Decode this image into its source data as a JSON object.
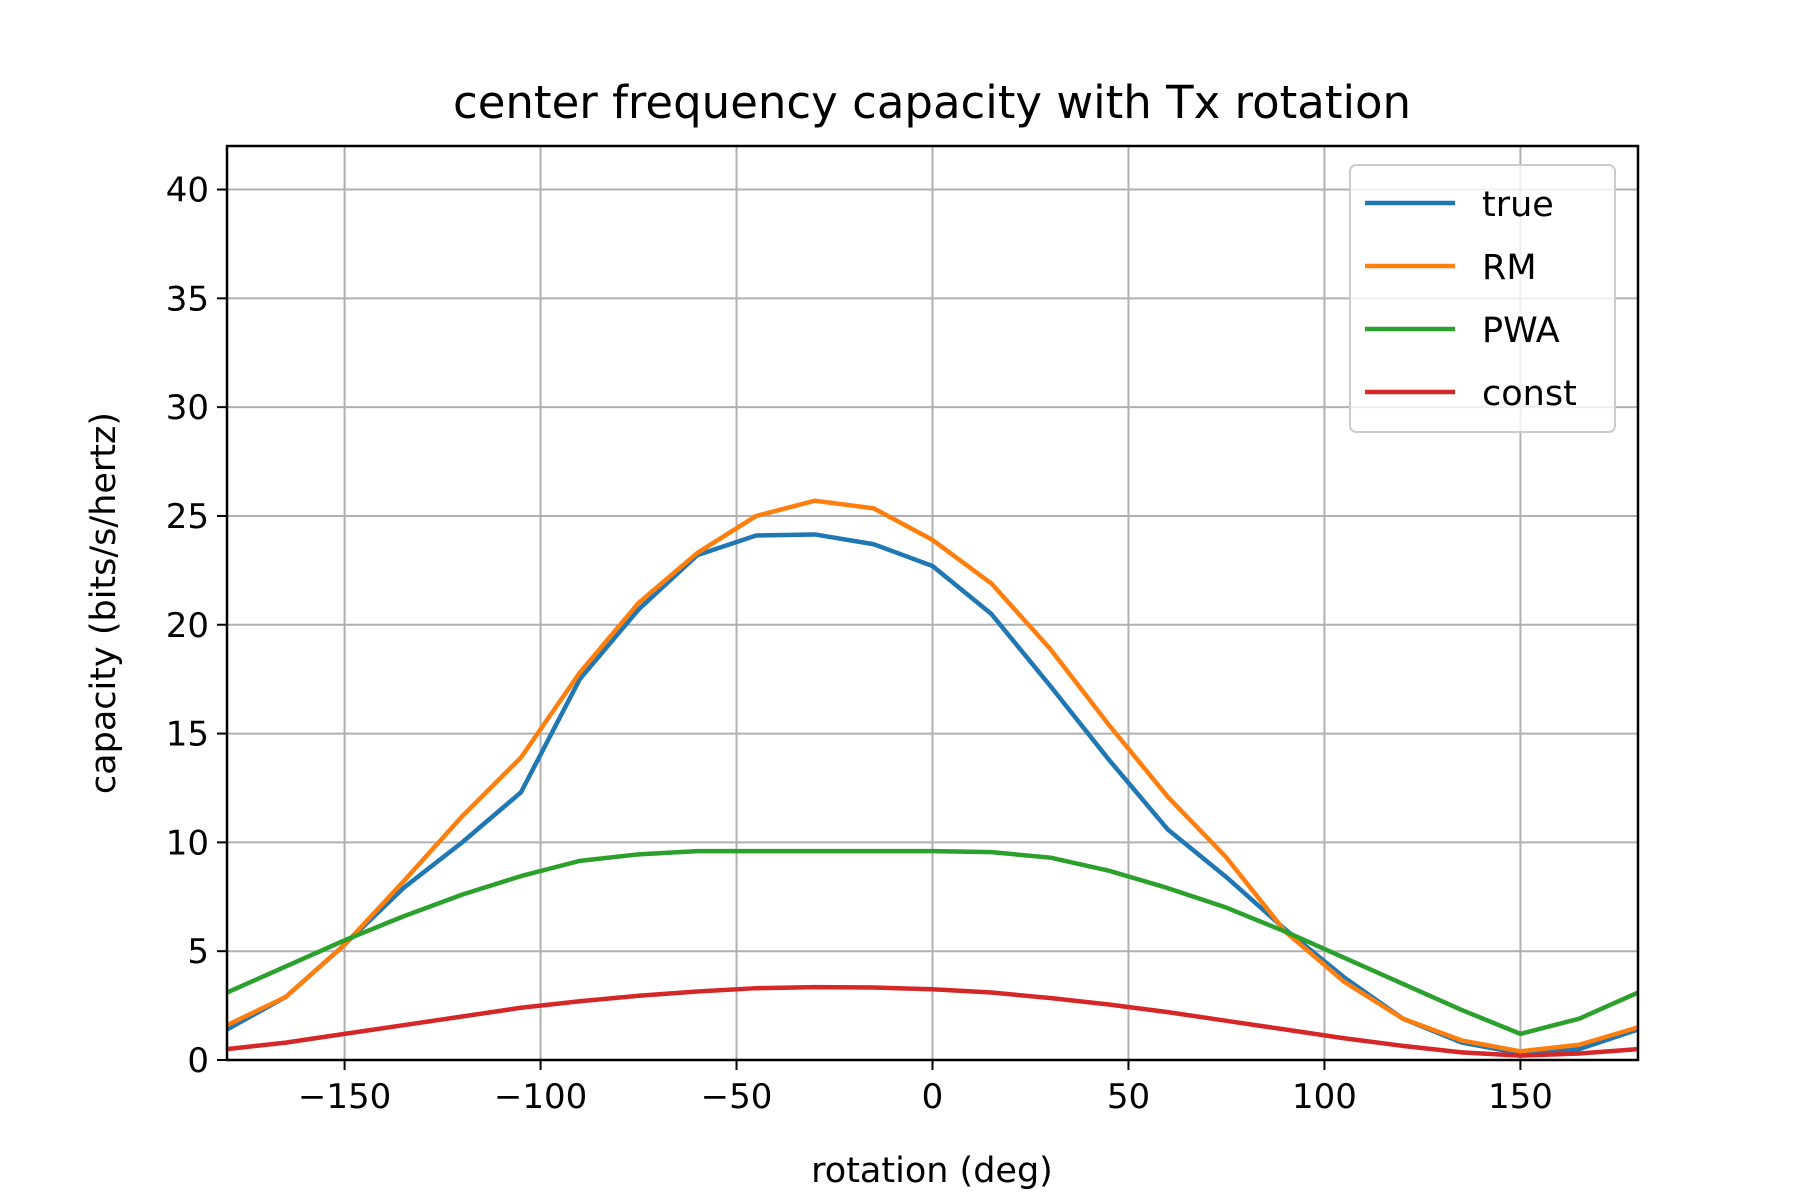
{
  "chart_data": {
    "type": "line",
    "title": "center frequency capacity with Tx rotation",
    "xlabel": "rotation (deg)",
    "ylabel": "capacity (bits/s/hertz)",
    "xlim": [
      -180,
      180
    ],
    "ylim": [
      0,
      42
    ],
    "xticks": [
      -150,
      -100,
      -50,
      0,
      50,
      100,
      150
    ],
    "xtick_labels": [
      "−150",
      "−100",
      "−50",
      "0",
      "50",
      "100",
      "150"
    ],
    "yticks": [
      0,
      5,
      10,
      15,
      20,
      25,
      30,
      35,
      40
    ],
    "ytick_labels": [
      "0",
      "5",
      "10",
      "15",
      "20",
      "25",
      "30",
      "35",
      "40"
    ],
    "grid": true,
    "legend_position": "top-right",
    "x": [
      -180,
      -165,
      -150,
      -135,
      -120,
      -105,
      -90,
      -75,
      -60,
      -45,
      -30,
      -15,
      0,
      15,
      30,
      45,
      60,
      75,
      90,
      105,
      120,
      135,
      150,
      165,
      180
    ],
    "series": [
      {
        "name": "true",
        "color": "#1f77b4",
        "values": [
          1.4,
          2.9,
          5.3,
          7.9,
          10.0,
          12.3,
          17.5,
          20.7,
          23.2,
          24.1,
          24.15,
          23.7,
          22.7,
          20.5,
          17.2,
          13.8,
          10.6,
          8.4,
          6.0,
          3.8,
          1.9,
          0.8,
          0.3,
          0.5,
          1.4
        ]
      },
      {
        "name": "RM",
        "color": "#ff7f0e",
        "values": [
          1.6,
          2.9,
          5.3,
          8.2,
          11.2,
          13.9,
          17.8,
          21.0,
          23.3,
          25.0,
          25.7,
          25.35,
          23.9,
          21.9,
          18.9,
          15.4,
          12.1,
          9.3,
          5.9,
          3.6,
          1.9,
          0.9,
          0.4,
          0.7,
          1.5
        ]
      },
      {
        "name": "PWA",
        "color": "#2ca02c",
        "values": [
          3.1,
          4.3,
          5.5,
          6.6,
          7.6,
          8.45,
          9.15,
          9.45,
          9.6,
          9.6,
          9.6,
          9.6,
          9.6,
          9.55,
          9.3,
          8.7,
          7.9,
          7.0,
          5.9,
          4.7,
          3.5,
          2.3,
          1.2,
          1.9,
          3.1
        ]
      },
      {
        "name": "const",
        "color": "#d62728",
        "values": [
          0.5,
          0.8,
          1.2,
          1.6,
          2.0,
          2.4,
          2.7,
          2.95,
          3.15,
          3.3,
          3.35,
          3.33,
          3.25,
          3.1,
          2.85,
          2.55,
          2.2,
          1.8,
          1.4,
          1.0,
          0.65,
          0.35,
          0.2,
          0.3,
          0.5
        ]
      }
    ]
  }
}
